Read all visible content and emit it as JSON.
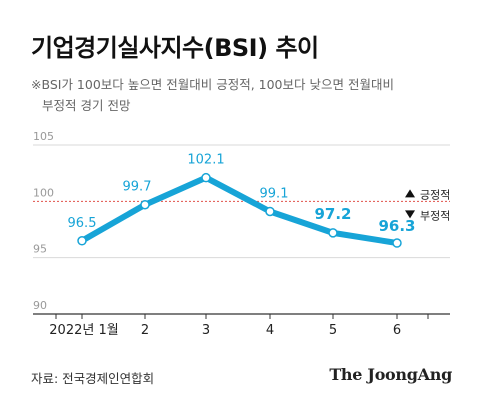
{
  "header": {
    "title": "기업경기실사지수(BSI) 추이",
    "note_line1": "※BSI가 100보다 높으면 전월대비 긍정적, 100보다 낮으면 전월대비",
    "note_line2": "부정적 경기 전망"
  },
  "chart_data": {
    "type": "line",
    "title": "기업경기실사지수(BSI) 추이",
    "categories": [
      "2022년 1월",
      "2",
      "3",
      "4",
      "5",
      "6"
    ],
    "values": [
      96.5,
      99.7,
      102.1,
      99.1,
      97.2,
      96.3
    ],
    "value_labels": [
      "96.5",
      "99.7",
      "102.1",
      "99.1",
      "97.2",
      "96.3"
    ],
    "yticks": [
      "105",
      "100",
      "95",
      "90"
    ],
    "ylim": [
      90,
      105
    ],
    "grid": true,
    "reference_line": {
      "value": 100,
      "up_label": "긍정적",
      "down_label": "부정적"
    },
    "colors": {
      "line": "#17A4D7",
      "reference": "#E0504A",
      "grid": "#D9D9D9",
      "axis": "#333333"
    }
  },
  "footer": {
    "source": "자료: 전국경제인연합회",
    "brand": "The JoongAng"
  }
}
